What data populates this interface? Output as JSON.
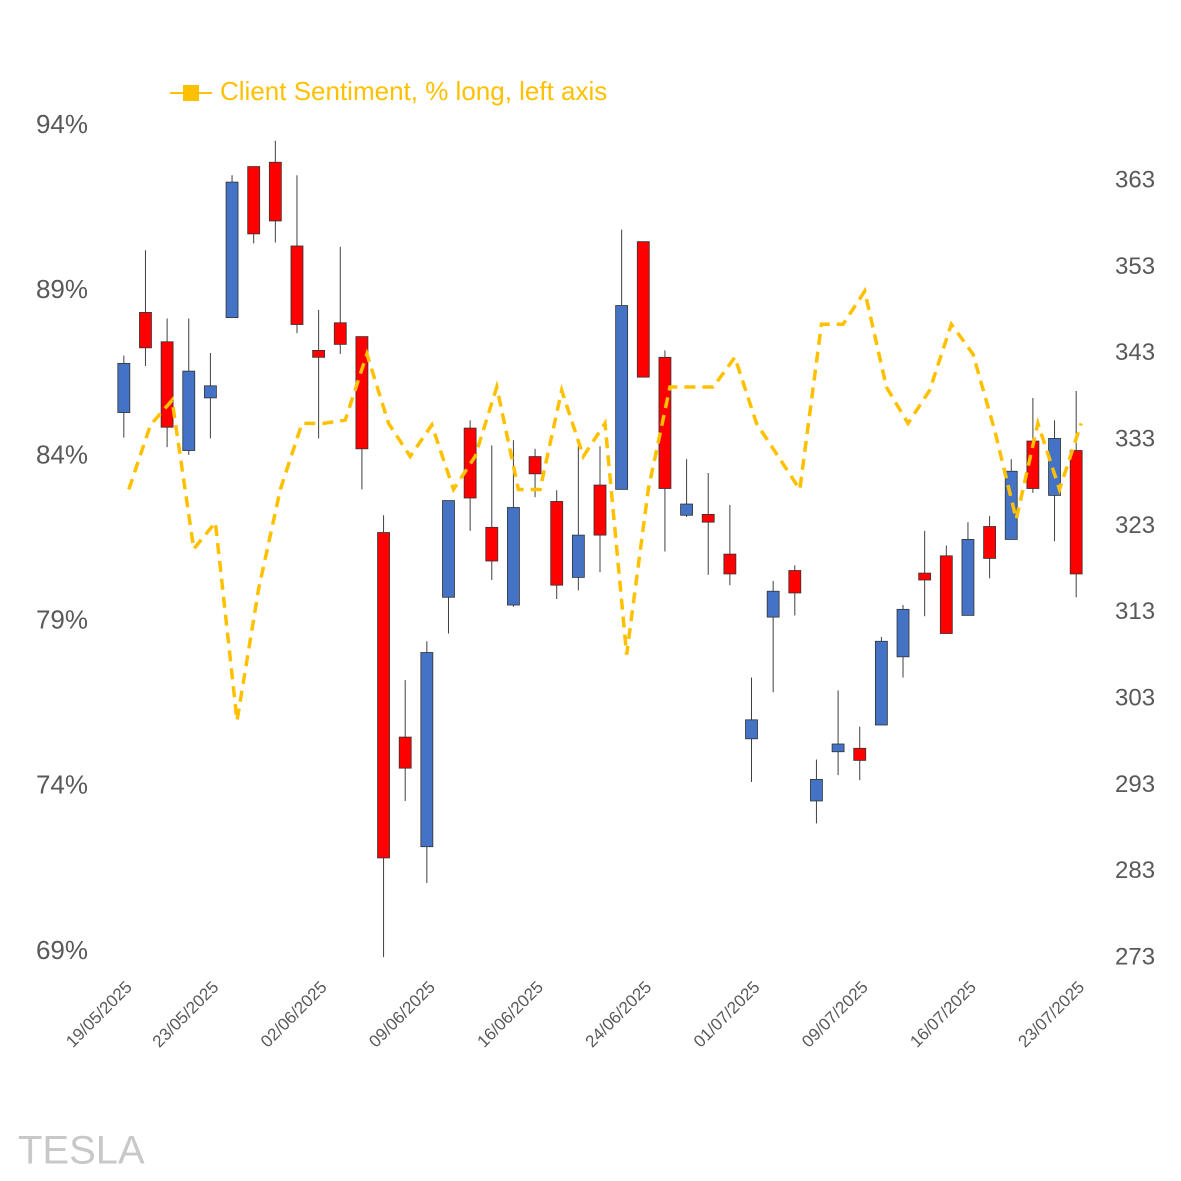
{
  "chart_data": {
    "type": "candlestick",
    "categories": [
      "19/05/2025",
      null,
      null,
      null,
      "23/05/2025",
      null,
      null,
      null,
      null,
      "02/06/2025",
      null,
      null,
      null,
      null,
      "09/06/2025",
      null,
      null,
      null,
      null,
      "16/06/2025",
      null,
      null,
      null,
      null,
      "24/06/2025",
      null,
      null,
      null,
      null,
      "01/07/2025",
      null,
      null,
      null,
      null,
      "09/07/2025",
      null,
      null,
      null,
      null,
      "16/07/2025",
      null,
      null,
      null,
      null,
      "23/07/2025"
    ],
    "ohlc": {
      "axis": "y2",
      "up_color": "#4472c4",
      "down_color": "#ff0000",
      "open": [
        336.2,
        347.8,
        344.4,
        331.8,
        337.9,
        347.2,
        364.7,
        365.2,
        355.5,
        343.4,
        346.6,
        345.0,
        322.3,
        298.6,
        285.9,
        314.8,
        334.4,
        322.9,
        313.9,
        331.1,
        325.9,
        317.1,
        327.8,
        327.3,
        356.0,
        342.6,
        324.3,
        324.4,
        319.8,
        298.4,
        312.5,
        317.9,
        291.2,
        296.9,
        297.3,
        300.0,
        307.9,
        317.6,
        319.6,
        312.7,
        323.0,
        321.5,
        332.9,
        326.6,
        331.8
      ],
      "high": [
        342.8,
        355.0,
        347.1,
        347.1,
        343.1,
        363.7,
        364.7,
        367.7,
        363.7,
        348.1,
        355.4,
        345.0,
        324.3,
        305.2,
        309.7,
        326.0,
        335.3,
        332.4,
        333.0,
        332.0,
        327.2,
        332.4,
        332.3,
        357.4,
        356.0,
        343.4,
        330.8,
        329.2,
        325.5,
        305.5,
        316.7,
        318.5,
        296.0,
        304.0,
        299.8,
        310.2,
        313.9,
        322.5,
        320.8,
        323.5,
        324.2,
        330.8,
        337.9,
        335.3,
        338.7
      ],
      "low": [
        333.3,
        341.6,
        332.2,
        331.3,
        333.2,
        347.2,
        355.8,
        355.9,
        345.4,
        333.2,
        343.0,
        327.3,
        273.1,
        291.2,
        281.7,
        310.6,
        322.5,
        316.8,
        313.7,
        326.4,
        314.6,
        315.6,
        317.7,
        327.3,
        340.3,
        320.1,
        324.1,
        317.4,
        316.2,
        293.4,
        303.8,
        312.7,
        288.6,
        294.2,
        293.6,
        300.0,
        305.5,
        312.6,
        310.6,
        312.7,
        317.0,
        321.5,
        326.9,
        321.3,
        314.8
      ],
      "close": [
        341.9,
        343.7,
        334.5,
        341.0,
        339.3,
        362.9,
        356.9,
        358.4,
        346.4,
        342.6,
        344.1,
        332.0,
        284.6,
        295.0,
        308.4,
        326.0,
        326.3,
        319.0,
        325.2,
        329.1,
        316.2,
        322.0,
        322.0,
        348.6,
        340.3,
        327.4,
        325.6,
        323.5,
        317.5,
        300.6,
        315.5,
        315.3,
        293.7,
        297.8,
        295.9,
        309.7,
        313.4,
        316.8,
        310.6,
        321.5,
        319.3,
        329.4,
        327.4,
        333.2,
        317.5
      ]
    },
    "series": [
      {
        "name": "Client Sentiment, % long, left axis",
        "color": "#ffc000",
        "type": "line",
        "values": [
          83.0,
          84.95,
          85.7,
          81.2,
          82.0,
          76.0,
          80.0,
          83.0,
          85.0,
          85.0,
          85.1,
          87.1,
          85.0,
          84.0,
          84.95,
          83.0,
          84.0,
          86.1,
          83.0,
          83.0,
          86.0,
          84.0,
          85.0,
          78.0,
          83.0,
          86.1,
          86.1,
          86.1,
          87.0,
          85.0,
          84.0,
          83.0,
          88.0,
          88.0,
          89.0,
          86.1,
          85.0,
          86.0,
          88.0,
          87.1,
          84.8,
          82.1,
          85.0,
          83.0,
          85.0
        ]
      }
    ],
    "ylim": [
      69,
      94
    ],
    "yticks": [
      {
        "value": 94,
        "label": "94%"
      },
      {
        "value": 89,
        "label": "89%"
      },
      {
        "value": 84,
        "label": "84%"
      },
      {
        "value": 79,
        "label": "79%"
      },
      {
        "value": 74,
        "label": "74%"
      },
      {
        "value": 69,
        "label": "69%"
      }
    ],
    "y2lim": [
      273.7,
      369.4
    ],
    "y2ticks": [
      363,
      353,
      343,
      333,
      323,
      313,
      303,
      293,
      283,
      273
    ],
    "legend": "top",
    "watermark": "TESLA"
  }
}
